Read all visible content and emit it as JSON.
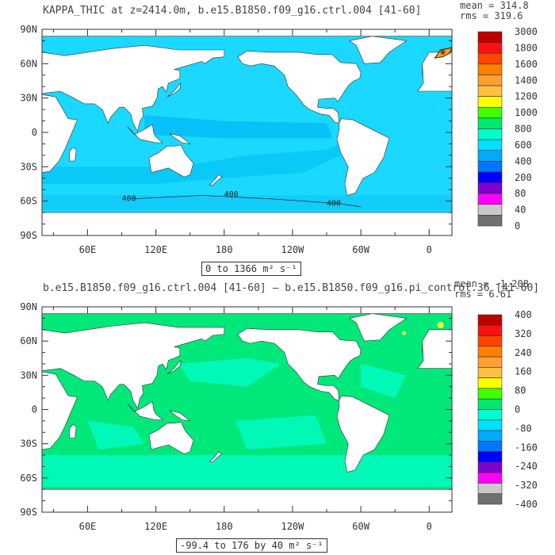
{
  "chart_data": [
    {
      "type": "heatmap",
      "title": "KAPPA_THIC at z=2414.0m, b.e15.B1850.f09_g16.ctrl.004 [41-60]",
      "stats": {
        "mean": "mean = 314.8",
        "rms": "rms = 319.6"
      },
      "range_label": "0 to 1366 m² s⁻¹",
      "contour_labels": [
        "400",
        "400",
        "400"
      ],
      "y_ticks": [
        "90N",
        "60N",
        "30N",
        "0",
        "30S",
        "60S",
        "90S"
      ],
      "x_ticks": [
        "60E",
        "120E",
        "180",
        "120W",
        "60W",
        "0"
      ],
      "colorbar": {
        "labels": [
          "3000",
          "1800",
          "1600",
          "1400",
          "1200",
          "1000",
          "800",
          "600",
          "400",
          "200",
          "80",
          "40",
          "0"
        ],
        "colors": [
          "#c00000",
          "#ff1010",
          "#ff4400",
          "#ff7f00",
          "#ffa030",
          "#ffc040",
          "#ffff00",
          "#40ff00",
          "#00e870",
          "#00ffcc",
          "#00e0ff",
          "#00aaff",
          "#0077ff",
          "#0000ff",
          "#8000d0",
          "#ff00ff",
          "#c8c8c8",
          "#707070"
        ]
      },
      "ocean_color": "#1ad8ff"
    },
    {
      "type": "heatmap",
      "title": "b.e15.B1850.f09_g16.ctrl.004 [41-60] – b.e15.B1850.f09_g16.pi_control.36 [41-60]",
      "stats": {
        "mean": "mean = -1.208",
        "rms": "rms = 6.61"
      },
      "range_label": "-99.4 to 176 by 40 m² s⁻¹",
      "y_ticks": [
        "90N",
        "60N",
        "30N",
        "0",
        "30S",
        "60S",
        "90S"
      ],
      "x_ticks": [
        "60E",
        "120E",
        "180",
        "120W",
        "60W",
        "0"
      ],
      "colorbar": {
        "labels": [
          "400",
          "320",
          "240",
          "160",
          "80",
          "0",
          "-80",
          "-160",
          "-240",
          "-320",
          "-400"
        ],
        "colors": [
          "#c00000",
          "#ff1010",
          "#ff4400",
          "#ff7f00",
          "#ffa030",
          "#ffc040",
          "#ffff00",
          "#40ff00",
          "#00e870",
          "#00ffcc",
          "#00e0ff",
          "#00aaff",
          "#0077ff",
          "#0000ff",
          "#8000d0",
          "#ff00ff",
          "#c8c8c8",
          "#707070"
        ]
      },
      "ocean_color": "#00e87a",
      "ocean_color_alt": "#00ffcc"
    }
  ]
}
